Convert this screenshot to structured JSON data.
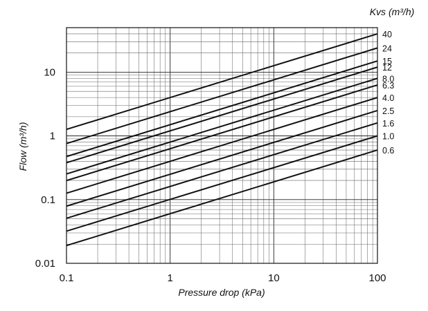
{
  "chart_data": {
    "type": "line",
    "scale": "log-log",
    "xlabel": "Pressure drop  (kPa)",
    "ylabel": "Flow (m³/h)",
    "xlim": [
      0.1,
      100
    ],
    "ylim": [
      0.01,
      50
    ],
    "grid": true,
    "x_ticks": [
      0.1,
      1,
      10,
      100
    ],
    "x_tick_labels": [
      "0.1",
      "1",
      "10",
      "100"
    ],
    "y_ticks": [
      0.01,
      0.1,
      1,
      10
    ],
    "y_tick_labels": [
      "0.01",
      "0.1",
      "1",
      "10"
    ],
    "legend_title": "Kvs (m³/h)",
    "legend_placement": "right",
    "series": [
      {
        "name": "40",
        "kvs": 40,
        "x": [
          0.1,
          100
        ],
        "y": [
          1.265,
          40
        ]
      },
      {
        "name": "24",
        "kvs": 24,
        "x": [
          0.1,
          100
        ],
        "y": [
          0.759,
          24
        ]
      },
      {
        "name": "15",
        "kvs": 15,
        "x": [
          0.1,
          100
        ],
        "y": [
          0.474,
          15
        ]
      },
      {
        "name": "12",
        "kvs": 12,
        "x": [
          0.1,
          100
        ],
        "y": [
          0.379,
          12
        ]
      },
      {
        "name": "8.0",
        "kvs": 8.0,
        "x": [
          0.1,
          100
        ],
        "y": [
          0.253,
          8.0
        ]
      },
      {
        "name": "6.3",
        "kvs": 6.3,
        "x": [
          0.1,
          100
        ],
        "y": [
          0.199,
          6.3
        ]
      },
      {
        "name": "4.0",
        "kvs": 4.0,
        "x": [
          0.1,
          100
        ],
        "y": [
          0.126,
          4.0
        ]
      },
      {
        "name": "2.5",
        "kvs": 2.5,
        "x": [
          0.1,
          100
        ],
        "y": [
          0.079,
          2.5
        ]
      },
      {
        "name": "1.6",
        "kvs": 1.6,
        "x": [
          0.1,
          100
        ],
        "y": [
          0.051,
          1.6
        ]
      },
      {
        "name": "1.0",
        "kvs": 1.0,
        "x": [
          0.1,
          100
        ],
        "y": [
          0.032,
          1.0
        ]
      },
      {
        "name": "0.6",
        "kvs": 0.6,
        "x": [
          0.1,
          100
        ],
        "y": [
          0.019,
          0.6
        ]
      }
    ]
  }
}
